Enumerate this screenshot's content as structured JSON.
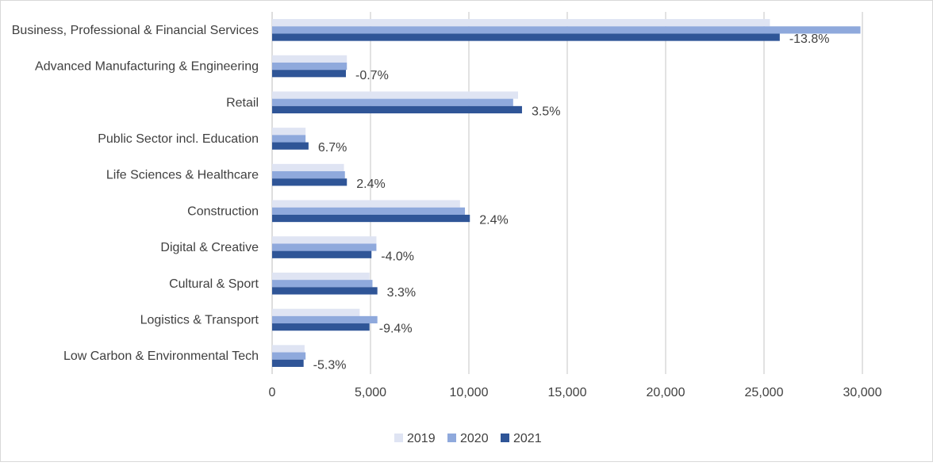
{
  "chart_data": {
    "type": "bar",
    "orientation": "horizontal",
    "categories": [
      "Business, Professional & Financial Services",
      "Advanced Manufacturing & Engineering",
      "Retail",
      "Public Sector incl. Education",
      "Life Sciences & Healthcare",
      "Construction",
      "Digital & Creative",
      "Cultural & Sport",
      "Logistics & Transport",
      "Low Carbon & Environmental Tech"
    ],
    "series": [
      {
        "name": "2019",
        "color": "#dfe4f3",
        "values": [
          25300,
          3800,
          12500,
          1700,
          3650,
          9550,
          5300,
          4950,
          4450,
          1650
        ]
      },
      {
        "name": "2020",
        "color": "#8fa9dc",
        "values": [
          29900,
          3800,
          12250,
          1700,
          3700,
          9800,
          5300,
          5100,
          5350,
          1700
        ]
      },
      {
        "name": "2021",
        "color": "#2f5597",
        "values": [
          25800,
          3750,
          12700,
          1850,
          3800,
          10050,
          5050,
          5350,
          4950,
          1600
        ]
      }
    ],
    "data_labels": [
      "-13.8%",
      "-0.7%",
      "3.5%",
      "6.7%",
      "2.4%",
      "2.4%",
      "-4.0%",
      "3.3%",
      "-9.4%",
      "-5.3%"
    ],
    "xlim": [
      0,
      30000
    ],
    "x_ticks": [
      "0",
      "5,000",
      "10,000",
      "15,000",
      "20,000",
      "25,000",
      "30,000"
    ],
    "grid": true,
    "legend_position": "bottom",
    "title": "",
    "xlabel": "",
    "ylabel": ""
  }
}
